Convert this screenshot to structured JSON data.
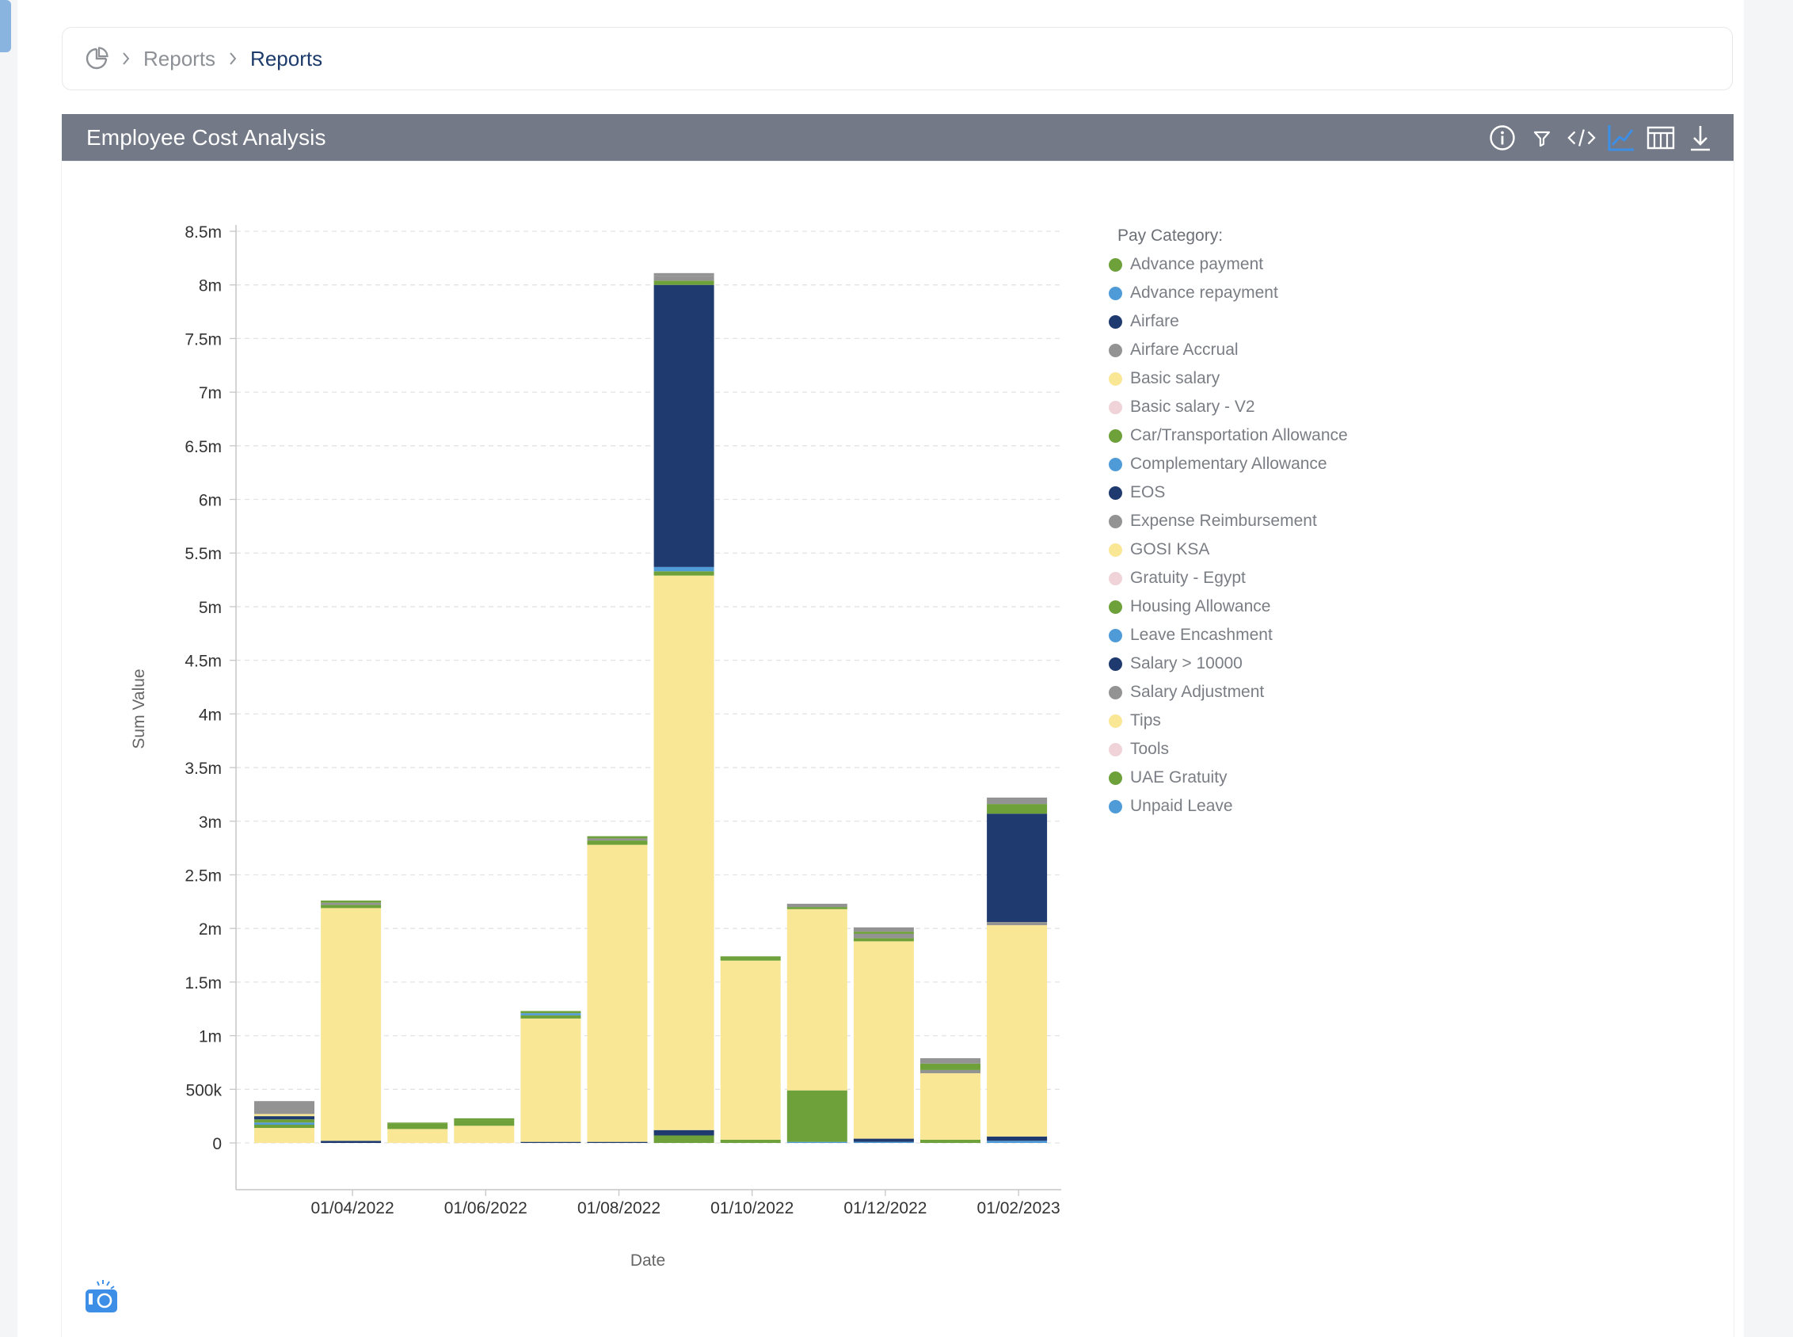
{
  "breadcrumb": {
    "items": [
      "Reports",
      "Reports"
    ]
  },
  "panel": {
    "title": "Employee Cost Analysis",
    "toolbar": [
      "info-icon",
      "filter-icon",
      "code-icon",
      "line-chart-icon",
      "table-icon",
      "download-icon"
    ],
    "active_tool": "line-chart-icon"
  },
  "legend": {
    "title": "Pay Category:",
    "items": [
      {
        "label": "Advance payment",
        "color": "#6ea13a"
      },
      {
        "label": "Advance repayment",
        "color": "#4f9bd8"
      },
      {
        "label": "Airfare",
        "color": "#1e3a6e"
      },
      {
        "label": "Airfare Accrual",
        "color": "#939393"
      },
      {
        "label": "Basic salary",
        "color": "#f9e795"
      },
      {
        "label": "Basic salary - V2",
        "color": "#f0d3d8"
      },
      {
        "label": "Car/Transportation Allowance",
        "color": "#6ea13a"
      },
      {
        "label": "Complementary Allowance",
        "color": "#4f9bd8"
      },
      {
        "label": "EOS",
        "color": "#1e3a6e"
      },
      {
        "label": "Expense Reimbursement",
        "color": "#939393"
      },
      {
        "label": "GOSI KSA",
        "color": "#f9e795"
      },
      {
        "label": "Gratuity - Egypt",
        "color": "#f0d3d8"
      },
      {
        "label": "Housing Allowance",
        "color": "#6ea13a"
      },
      {
        "label": "Leave Encashment",
        "color": "#4f9bd8"
      },
      {
        "label": "Salary > 10000",
        "color": "#1e3a6e"
      },
      {
        "label": "Salary Adjustment",
        "color": "#939393"
      },
      {
        "label": "Tips",
        "color": "#f9e795"
      },
      {
        "label": "Tools",
        "color": "#f0d3d8"
      },
      {
        "label": "UAE Gratuity",
        "color": "#6ea13a"
      },
      {
        "label": "Unpaid Leave",
        "color": "#4f9bd8"
      }
    ]
  },
  "chart_data": {
    "type": "bar",
    "stacked": true,
    "xlabel": "Date",
    "ylabel": "Sum Value",
    "ylim": [
      0,
      8500000
    ],
    "yticks": [
      "0",
      "500k",
      "1m",
      "1.5m",
      "2m",
      "2.5m",
      "3m",
      "3.5m",
      "4m",
      "4.5m",
      "5m",
      "5.5m",
      "6m",
      "6.5m",
      "7m",
      "7.5m",
      "8m",
      "8.5m"
    ],
    "x_tick_labels": [
      "01/04/2022",
      "01/06/2022",
      "01/08/2022",
      "01/10/2022",
      "01/12/2022",
      "01/02/2023"
    ],
    "categories": [
      "01/03/2022",
      "01/04/2022",
      "01/05/2022",
      "01/06/2022",
      "01/07/2022",
      "01/08/2022",
      "01/09/2022",
      "01/10/2022",
      "01/11/2022",
      "01/12/2022",
      "01/01/2023",
      "01/02/2023"
    ],
    "grid": "horizontal dashed",
    "legend_position": "right",
    "bars": [
      {
        "category": "01/03/2022",
        "segments": [
          {
            "series": "Basic salary",
            "value": 140000
          },
          {
            "series": "Car/Transportation Allowance",
            "value": 30000
          },
          {
            "series": "Complementary Allowance",
            "value": 20000
          },
          {
            "series": "Housing Allowance",
            "value": 30000
          },
          {
            "series": "Salary > 10000",
            "value": 30000
          },
          {
            "series": "Tips",
            "value": 20000
          },
          {
            "series": "Expense Reimbursement",
            "value": 120000
          }
        ]
      },
      {
        "category": "01/04/2022",
        "segments": [
          {
            "series": "Salary > 10000",
            "value": 20000
          },
          {
            "series": "Basic salary",
            "value": 2170000
          },
          {
            "series": "Housing Allowance",
            "value": 30000
          },
          {
            "series": "Airfare Accrual",
            "value": 20000
          },
          {
            "series": "Car/Transportation Allowance",
            "value": 20000
          }
        ]
      },
      {
        "category": "01/05/2022",
        "segments": [
          {
            "series": "Basic salary",
            "value": 130000
          },
          {
            "series": "Housing Allowance",
            "value": 50000
          },
          {
            "series": "Car/Transportation Allowance",
            "value": 10000
          }
        ]
      },
      {
        "category": "01/06/2022",
        "segments": [
          {
            "series": "Basic salary",
            "value": 160000
          },
          {
            "series": "Housing Allowance",
            "value": 50000
          },
          {
            "series": "Car/Transportation Allowance",
            "value": 20000
          }
        ]
      },
      {
        "category": "01/07/2022",
        "segments": [
          {
            "series": "Salary > 10000",
            "value": 10000
          },
          {
            "series": "Basic salary",
            "value": 1150000
          },
          {
            "series": "Housing Allowance",
            "value": 30000
          },
          {
            "series": "Leave Encashment",
            "value": 20000
          },
          {
            "series": "Car/Transportation Allowance",
            "value": 20000
          }
        ]
      },
      {
        "category": "01/08/2022",
        "segments": [
          {
            "series": "Salary > 10000",
            "value": 10000
          },
          {
            "series": "Basic salary",
            "value": 2770000
          },
          {
            "series": "Housing Allowance",
            "value": 40000
          },
          {
            "series": "Airfare Accrual",
            "value": 20000
          },
          {
            "series": "Car/Transportation Allowance",
            "value": 20000
          }
        ]
      },
      {
        "category": "01/09/2022",
        "segments": [
          {
            "series": "Housing Allowance",
            "value": 70000
          },
          {
            "series": "Salary > 10000",
            "value": 50000
          },
          {
            "series": "Basic salary",
            "value": 5170000
          },
          {
            "series": "Car/Transportation Allowance",
            "value": 40000
          },
          {
            "series": "Complementary Allowance",
            "value": 40000
          },
          {
            "series": "EOS",
            "value": 2630000
          },
          {
            "series": "Advance payment",
            "value": 40000
          },
          {
            "series": "Airfare Accrual",
            "value": 40000
          },
          {
            "series": "Expense Reimbursement",
            "value": 30000
          }
        ]
      },
      {
        "category": "01/10/2022",
        "segments": [
          {
            "series": "Housing Allowance",
            "value": 30000
          },
          {
            "series": "Basic salary",
            "value": 1670000
          },
          {
            "series": "Car/Transportation Allowance",
            "value": 40000
          }
        ]
      },
      {
        "category": "01/11/2022",
        "segments": [
          {
            "series": "Unpaid Leave",
            "value": 10000
          },
          {
            "series": "Housing Allowance",
            "value": 480000
          },
          {
            "series": "Basic salary",
            "value": 1690000
          },
          {
            "series": "Car/Transportation Allowance",
            "value": 20000
          },
          {
            "series": "Airfare Accrual",
            "value": 30000
          }
        ]
      },
      {
        "category": "01/12/2022",
        "segments": [
          {
            "series": "Leave Encashment",
            "value": 10000
          },
          {
            "series": "Salary > 10000",
            "value": 30000
          },
          {
            "series": "Basic salary",
            "value": 1840000
          },
          {
            "series": "Car/Transportation Allowance",
            "value": 30000
          },
          {
            "series": "Expense Reimbursement",
            "value": 40000
          },
          {
            "series": "Advance payment",
            "value": 20000
          },
          {
            "series": "Airfare Accrual",
            "value": 40000
          }
        ]
      },
      {
        "category": "01/01/2023",
        "segments": [
          {
            "series": "Housing Allowance",
            "value": 30000
          },
          {
            "series": "Basic salary",
            "value": 620000
          },
          {
            "series": "Expense Reimbursement",
            "value": 30000
          },
          {
            "series": "Car/Transportation Allowance",
            "value": 60000
          },
          {
            "series": "Airfare Accrual",
            "value": 50000
          }
        ]
      },
      {
        "category": "01/02/2023",
        "segments": [
          {
            "series": "Leave Encashment",
            "value": 20000
          },
          {
            "series": "Salary > 10000",
            "value": 40000
          },
          {
            "series": "Basic salary",
            "value": 1970000
          },
          {
            "series": "Expense Reimbursement",
            "value": 30000
          },
          {
            "series": "EOS",
            "value": 1010000
          },
          {
            "series": "Car/Transportation Allowance",
            "value": 50000
          },
          {
            "series": "Advance payment",
            "value": 40000
          },
          {
            "series": "Airfare Accrual",
            "value": 60000
          }
        ]
      }
    ]
  }
}
